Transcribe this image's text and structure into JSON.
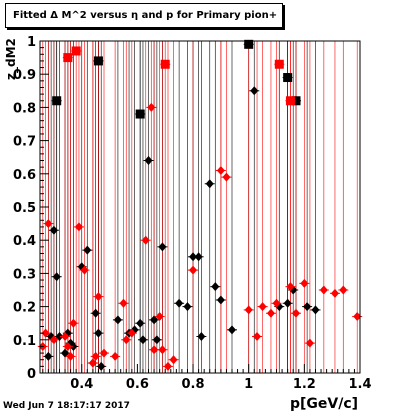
{
  "title": "Fitted Δ M^2 versus η and p for Primary pion+",
  "footer": "Wed Jun  7 18:17:17 2017",
  "chart_data": {
    "type": "scatter",
    "title": "Fitted Δ M^2 versus η and p for Primary pion+",
    "xlabel": "p[GeV/c]",
    "ylabel": "z_dM2",
    "xlim": [
      0.25,
      1.4
    ],
    "ylim": [
      0,
      1
    ],
    "xticks": [
      "0.4",
      "0.6",
      "0.8",
      "1",
      "1.2",
      "1.4"
    ],
    "yticks": [
      "0",
      "0.1",
      "0.2",
      "0.3",
      "0.4",
      "0.5",
      "0.6",
      "0.7",
      "0.8",
      "0.9",
      "1"
    ],
    "grid": "vertical lines at data points",
    "colors": {
      "black": "#000000",
      "red": "#ff0000"
    },
    "series": [
      {
        "color": "black",
        "marker": "diamond",
        "points": [
          [
            0.28,
            0.05
          ],
          [
            0.29,
            0.11
          ],
          [
            0.3,
            0.43
          ],
          [
            0.31,
            0.29
          ],
          [
            0.32,
            0.11
          ],
          [
            0.34,
            0.06
          ],
          [
            0.35,
            0.12
          ],
          [
            0.36,
            0.09
          ],
          [
            0.37,
            0.08
          ],
          [
            0.4,
            0.32
          ],
          [
            0.42,
            0.37
          ],
          [
            0.44,
            0.03
          ],
          [
            0.45,
            0.18
          ],
          [
            0.46,
            0.12
          ],
          [
            0.47,
            0.02
          ],
          [
            0.53,
            0.16
          ],
          [
            0.57,
            0.12
          ],
          [
            0.59,
            0.13
          ],
          [
            0.61,
            0.15
          ],
          [
            0.62,
            0.1
          ],
          [
            0.64,
            0.64
          ],
          [
            0.66,
            0.16
          ],
          [
            0.67,
            0.1
          ],
          [
            0.69,
            0.38
          ],
          [
            0.75,
            0.21
          ],
          [
            0.78,
            0.2
          ],
          [
            0.8,
            0.35
          ],
          [
            0.82,
            0.35
          ],
          [
            0.83,
            0.11
          ],
          [
            0.86,
            0.57
          ],
          [
            0.88,
            0.26
          ],
          [
            0.9,
            0.22
          ],
          [
            0.94,
            0.13
          ],
          [
            1.02,
            0.85
          ],
          [
            1.11,
            0.2
          ],
          [
            1.14,
            0.21
          ],
          [
            1.16,
            0.25
          ],
          [
            1.21,
            0.2
          ],
          [
            1.24,
            0.19
          ]
        ]
      },
      {
        "color": "black",
        "marker": "square",
        "points": [
          [
            0.31,
            0.82
          ],
          [
            0.46,
            0.94
          ],
          [
            0.61,
            0.78
          ],
          [
            1.0,
            0.99
          ],
          [
            1.14,
            0.89
          ],
          [
            1.17,
            0.82
          ]
        ]
      },
      {
        "color": "red",
        "marker": "diamond",
        "points": [
          [
            0.26,
            0.08
          ],
          [
            0.27,
            0.12
          ],
          [
            0.28,
            0.45
          ],
          [
            0.3,
            0.1
          ],
          [
            0.34,
            0.11
          ],
          [
            0.35,
            0.08
          ],
          [
            0.36,
            0.05
          ],
          [
            0.37,
            0.15
          ],
          [
            0.39,
            0.44
          ],
          [
            0.41,
            0.31
          ],
          [
            0.44,
            0.03
          ],
          [
            0.45,
            0.05
          ],
          [
            0.46,
            0.23
          ],
          [
            0.48,
            0.06
          ],
          [
            0.52,
            0.05
          ],
          [
            0.55,
            0.21
          ],
          [
            0.56,
            0.1
          ],
          [
            0.58,
            0.12
          ],
          [
            0.63,
            0.4
          ],
          [
            0.65,
            0.8
          ],
          [
            0.66,
            0.07
          ],
          [
            0.68,
            0.17
          ],
          [
            0.69,
            0.07
          ],
          [
            0.71,
            0.02
          ],
          [
            0.73,
            0.04
          ],
          [
            0.8,
            0.31
          ],
          [
            0.9,
            0.61
          ],
          [
            0.92,
            0.59
          ],
          [
            1.0,
            0.19
          ],
          [
            1.03,
            0.11
          ],
          [
            1.05,
            0.2
          ],
          [
            1.08,
            0.18
          ],
          [
            1.1,
            0.21
          ],
          [
            1.15,
            0.26
          ],
          [
            1.17,
            0.18
          ],
          [
            1.2,
            0.27
          ],
          [
            1.22,
            0.09
          ],
          [
            1.27,
            0.25
          ],
          [
            1.31,
            0.24
          ],
          [
            1.34,
            0.25
          ],
          [
            1.39,
            0.17
          ]
        ]
      },
      {
        "color": "red",
        "marker": "square",
        "points": [
          [
            0.35,
            0.95
          ],
          [
            0.38,
            0.97
          ],
          [
            0.7,
            0.93
          ],
          [
            1.11,
            0.93
          ],
          [
            1.15,
            0.82
          ]
        ]
      }
    ]
  }
}
